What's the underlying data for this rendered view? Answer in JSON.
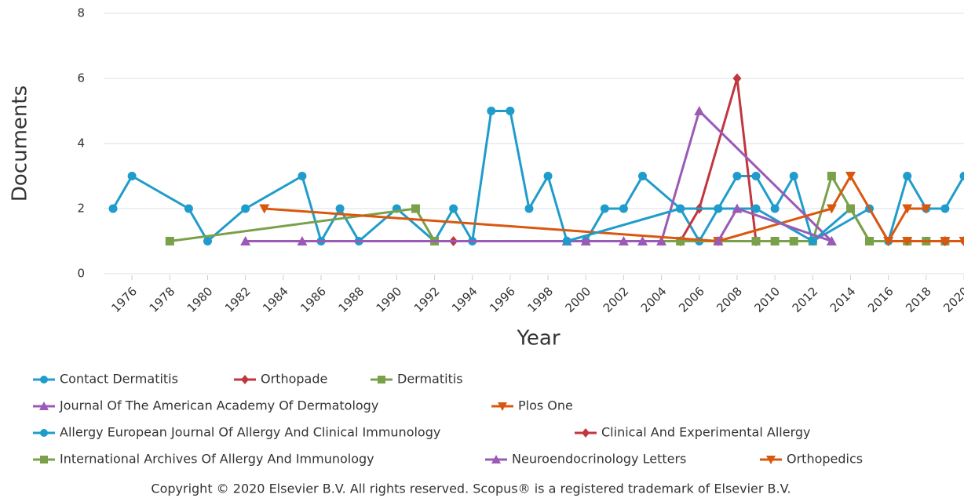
{
  "chart_data": {
    "type": "line",
    "x_label": "Year",
    "y_label": "Documents",
    "xlim": [
      1974.5,
      2020
    ],
    "xticks": [
      1976,
      1978,
      1980,
      1982,
      1984,
      1986,
      1988,
      1990,
      1992,
      1994,
      1996,
      1998,
      2000,
      2002,
      2004,
      2006,
      2008,
      2010,
      2012,
      2014,
      2016,
      2018,
      2020
    ],
    "ylim": [
      0,
      8
    ],
    "yticks": [
      0,
      2,
      4,
      6,
      8
    ],
    "grid": true,
    "legend": "bottom",
    "series": [
      {
        "name": "Contact Dermatitis",
        "color": "#1f9ccb",
        "marker": "circle",
        "x": [
          1975,
          1976,
          1979,
          1980,
          1982,
          1985,
          1986,
          1987,
          1988,
          1990,
          1992,
          1993,
          1994,
          1995,
          1996,
          1997,
          1998,
          1999,
          2000,
          2001,
          2002,
          2003,
          2005,
          2006,
          2007,
          2008,
          2009,
          2010,
          2011,
          2012,
          2015,
          2016,
          2017,
          2018,
          2019,
          2020
        ],
        "values": [
          2,
          3,
          2,
          1,
          2,
          3,
          1,
          2,
          1,
          2,
          1,
          2,
          1,
          5,
          5,
          2,
          3,
          1,
          1,
          2,
          2,
          3,
          2,
          1,
          2,
          3,
          3,
          2,
          3,
          1,
          2,
          1,
          3,
          2,
          2,
          3
        ]
      },
      {
        "name": "Orthopade",
        "color": "#c1363f",
        "marker": "diamond",
        "x": [
          1993,
          2005,
          2006,
          2008,
          2009
        ],
        "values": [
          1,
          1,
          2,
          6,
          1
        ]
      },
      {
        "name": "Dermatitis",
        "color": "#7aa04a",
        "marker": "square",
        "x": [
          1978,
          1991,
          1992,
          2005,
          2007,
          2009,
          2010,
          2011,
          2012,
          2013,
          2015,
          2017,
          2018,
          2019
        ],
        "values": [
          1,
          2,
          1,
          1,
          1,
          1,
          1,
          1,
          1,
          3,
          1,
          1,
          1,
          1
        ]
      },
      {
        "name": "Journal Of The American Academy Of Dermatology",
        "color": "#9b5ab5",
        "marker": "triangle",
        "x": [
          1982,
          1985,
          1999,
          2000,
          2002,
          2003,
          2004,
          2006,
          2013
        ],
        "values": [
          1,
          1,
          1,
          1,
          1,
          1,
          1,
          5,
          1
        ]
      },
      {
        "name": "Plos One",
        "color": "#d9580f",
        "marker": "triangle-down",
        "x": [
          1983,
          2007,
          2013,
          2014,
          2016,
          2017,
          2018
        ],
        "values": [
          2,
          1,
          2,
          3,
          1,
          2,
          2
        ]
      },
      {
        "name": "Allergy European Journal Of Allergy And Clinical Immunology",
        "color": "#1f9ccb",
        "marker": "circle",
        "x": [
          1999,
          2005,
          2007,
          2009,
          2012,
          2014
        ],
        "values": [
          1,
          2,
          2,
          2,
          1,
          2
        ]
      },
      {
        "name": "Clinical And Experimental Allergy",
        "color": "#c1363f",
        "marker": "diamond",
        "x": [
          2019,
          2020
        ],
        "values": [
          1,
          1
        ]
      },
      {
        "name": "International Archives Of Allergy And Immunology",
        "color": "#7aa04a",
        "marker": "square",
        "x": [
          2014,
          2015
        ],
        "values": [
          2,
          1
        ]
      },
      {
        "name": "Neuroendocrinology Letters",
        "color": "#9b5ab5",
        "marker": "triangle",
        "x": [
          2007,
          2008,
          2013
        ],
        "values": [
          1,
          2,
          1
        ]
      },
      {
        "name": "Orthopedics",
        "color": "#d9580f",
        "marker": "triangle-down",
        "x": [
          2016,
          2017,
          2019,
          2020
        ],
        "values": [
          1,
          1,
          1,
          1
        ]
      }
    ],
    "footer": "Copyright © 2020 Elsevier B.V. All rights reserved. Scopus® is a registered trademark of Elsevier B.V."
  }
}
